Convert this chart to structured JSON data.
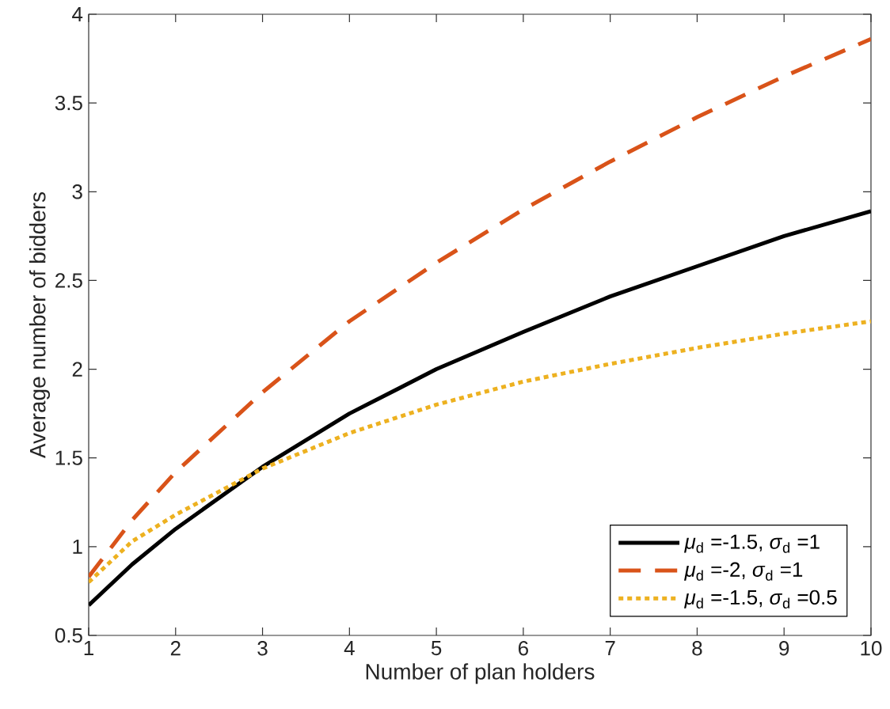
{
  "chart_data": {
    "type": "line",
    "xlabel": "Number of plan holders",
    "ylabel": "Average number of bidders",
    "x": [
      1,
      1.5,
      2,
      3,
      4,
      5,
      6,
      7,
      8,
      9,
      10
    ],
    "series": [
      {
        "name": "*μ*$_{d}$ =-1.5, *σ*$_{d}$ =1",
        "color": "#000000",
        "line_style": "solid",
        "values": [
          0.67,
          0.9,
          1.1,
          1.45,
          1.75,
          2.0,
          2.21,
          2.41,
          2.58,
          2.75,
          2.89
        ]
      },
      {
        "name": "*μ*$_{d}$ =-2, *σ*$_{d}$ =1",
        "color": "#d95319",
        "line_style": "dashed",
        "values": [
          0.83,
          1.15,
          1.42,
          1.87,
          2.27,
          2.6,
          2.9,
          3.17,
          3.42,
          3.65,
          3.86
        ]
      },
      {
        "name": "*μ*$_{d}$ =-1.5, *σ*$_{d}$ =0.5",
        "color": "#edb120",
        "line_style": "dotted",
        "values": [
          0.8,
          1.03,
          1.18,
          1.44,
          1.64,
          1.8,
          1.93,
          2.03,
          2.12,
          2.2,
          2.27
        ]
      }
    ],
    "xlim": [
      1,
      10
    ],
    "ylim": [
      0.5,
      4
    ],
    "xticks": [
      1,
      2,
      3,
      4,
      5,
      6,
      7,
      8,
      9,
      10
    ],
    "yticks": [
      0.5,
      1,
      1.5,
      2,
      2.5,
      3,
      3.5,
      4
    ],
    "legend": "bottom right",
    "grid": false,
    "marker": "none"
  }
}
